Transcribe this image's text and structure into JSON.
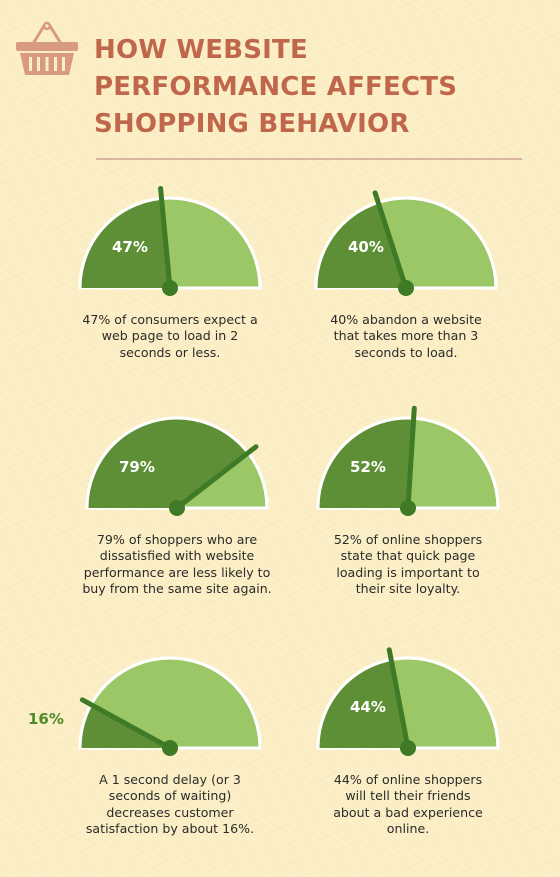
{
  "header": {
    "title": "HOW WEBSITE PERFORMANCE AFFECTS SHOPPING BEHAVIOR",
    "icon": "shopping-basket-icon"
  },
  "colors": {
    "title": "#c0674b",
    "icon": "#d99a82",
    "gauge_dark": "#5e8f36",
    "gauge_light": "#9cc767",
    "gauge_outline": "#ffffff",
    "needle": "#3f7a26",
    "caption_text": "#2b2b2b",
    "outside_percent": "#4d8a2c"
  },
  "chart_data": {
    "type": "gauge",
    "title": "HOW WEBSITE PERFORMANCE AFFECTS SHOPPING BEHAVIOR",
    "range": [
      0,
      100
    ],
    "gauges": [
      {
        "value": 47,
        "label": "47%",
        "caption": [
          "47% of consumers expect a",
          "web page to load in 2",
          "seconds or less."
        ]
      },
      {
        "value": 40,
        "label": "40%",
        "caption": [
          "40% abandon a website",
          "that takes more than 3",
          "seconds to load."
        ]
      },
      {
        "value": 79,
        "label": "79%",
        "caption": [
          "79% of shoppers who are",
          "dissatisfied with website",
          "performance are less likely to",
          "buy from the same site again."
        ]
      },
      {
        "value": 52,
        "label": "52%",
        "caption": [
          "52% of online shoppers",
          "state that quick page",
          "loading is important to",
          "their site loyalty."
        ]
      },
      {
        "value": 16,
        "label": "16%",
        "caption": [
          "A 1 second delay (or 3",
          "seconds of waiting)",
          "decreases customer",
          "satisfaction by about 16%."
        ]
      },
      {
        "value": 44,
        "label": "44%",
        "caption": [
          "44% of online shoppers",
          "will tell their friends",
          "about a bad experience",
          "online."
        ]
      }
    ]
  }
}
